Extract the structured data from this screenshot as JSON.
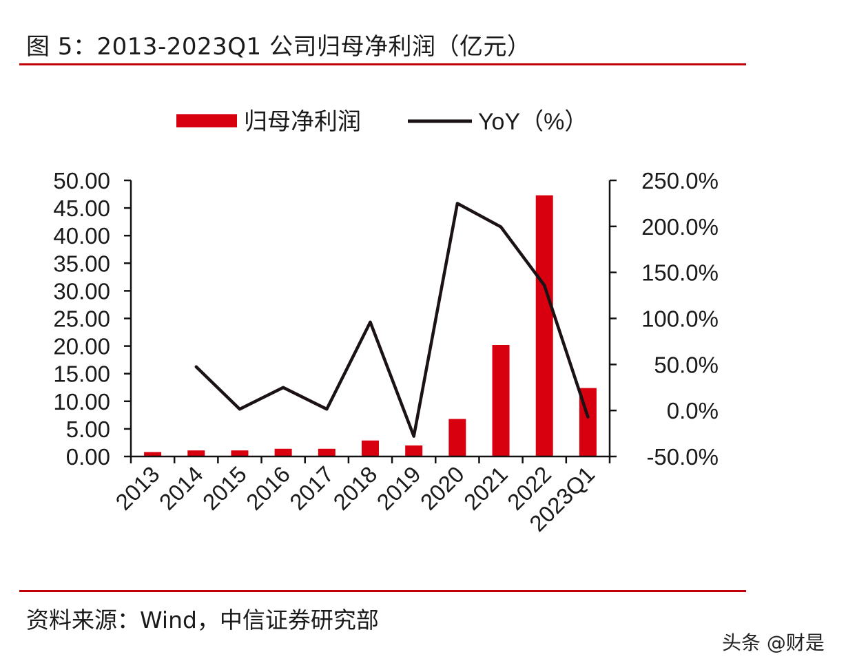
{
  "header": {
    "title": "图 5：2013-2023Q1 公司归母净利润（亿元）"
  },
  "footer": {
    "source": "资料来源：Wind，中信证券研究部",
    "watermark": "头条 @财是"
  },
  "chart_data": {
    "type": "bar",
    "categories": [
      "2013",
      "2014",
      "2015",
      "2016",
      "2017",
      "2018",
      "2019",
      "2020",
      "2021",
      "2022",
      "2023Q1"
    ],
    "series": [
      {
        "name": "归母净利润",
        "type": "bar",
        "axis": "left",
        "color": "#d8000f",
        "values": [
          0.8,
          1.1,
          1.1,
          1.4,
          1.4,
          2.9,
          2.0,
          6.8,
          20.2,
          47.3,
          12.4
        ]
      },
      {
        "name": "YoY（%）",
        "type": "line",
        "axis": "right",
        "color": "#1a1214",
        "values": [
          null,
          47.5,
          1.5,
          25.0,
          1.5,
          96.0,
          -28.0,
          225.0,
          199.5,
          136.0,
          -7.0
        ]
      }
    ],
    "left_axis": {
      "min": 0,
      "max": 50,
      "step": 5,
      "tick_labels": [
        "0.00",
        "5.00",
        "10.00",
        "15.00",
        "20.00",
        "25.00",
        "30.00",
        "35.00",
        "40.00",
        "45.00",
        "50.00"
      ]
    },
    "right_axis": {
      "min": -50,
      "max": 250,
      "step": 50,
      "tick_labels": [
        "-50.0%",
        "0.0%",
        "50.0%",
        "100.0%",
        "150.0%",
        "200.0%",
        "250.0%"
      ]
    },
    "legend": {
      "position": "top-center",
      "entries": [
        "归母净利润",
        "YoY（%）"
      ]
    }
  }
}
